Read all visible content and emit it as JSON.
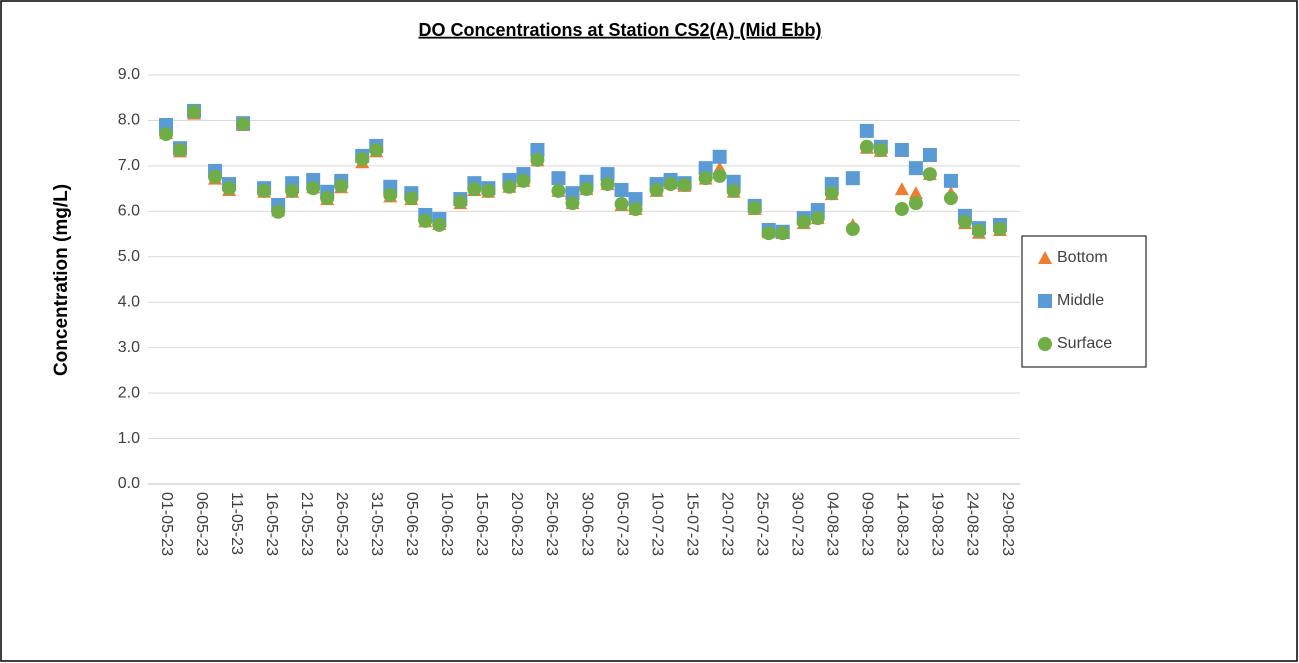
{
  "chart_data": {
    "type": "scatter",
    "title": "DO Concentrations at Station CS2(A) (Mid Ebb)",
    "y_label": "Concentration (mg/L)",
    "x": [
      "01-05-23",
      "03-05-23",
      "05-05-23",
      "08-05-23",
      "10-05-23",
      "12-05-23",
      "15-05-23",
      "17-05-23",
      "19-05-23",
      "22-05-23",
      "24-05-23",
      "26-05-23",
      "29-05-23",
      "31-05-23",
      "02-06-23",
      "05-06-23",
      "07-06-23",
      "09-06-23",
      "12-06-23",
      "14-06-23",
      "16-06-23",
      "19-06-23",
      "21-06-23",
      "23-06-23",
      "26-06-23",
      "28-06-23",
      "30-06-23",
      "03-07-23",
      "05-07-23",
      "07-07-23",
      "10-07-23",
      "12-07-23",
      "14-07-23",
      "17-07-23",
      "19-07-23",
      "21-07-23",
      "24-07-23",
      "26-07-23",
      "28-07-23",
      "31-07-23",
      "02-08-23",
      "04-08-23",
      "07-08-23",
      "09-08-23",
      "11-08-23",
      "14-08-23",
      "16-08-23",
      "18-08-23",
      "21-08-23",
      "23-08-23",
      "25-08-23",
      "28-08-23"
    ],
    "series": [
      {
        "name": "Bottom",
        "color": "#ed7d31",
        "marker": "triangle",
        "values": [
          7.72,
          7.32,
          8.15,
          6.72,
          6.47,
          7.9,
          6.43,
          6.02,
          6.43,
          6.53,
          6.27,
          6.53,
          7.08,
          7.32,
          6.33,
          6.27,
          5.78,
          5.72,
          6.18,
          6.47,
          6.43,
          6.54,
          6.67,
          7.12,
          6.45,
          6.18,
          6.49,
          6.6,
          6.14,
          6.05,
          6.45,
          6.62,
          6.56,
          6.72,
          6.95,
          6.43,
          6.05,
          5.54,
          5.52,
          5.74,
          5.85,
          6.38,
          5.7,
          7.4,
          7.33,
          6.49,
          6.4,
          6.82,
          6.4,
          5.74,
          5.53,
          5.59
        ]
      },
      {
        "name": "Middle",
        "color": "#5b9bd5",
        "marker": "square",
        "values": [
          7.9,
          7.39,
          8.21,
          6.89,
          6.6,
          7.94,
          6.51,
          6.14,
          6.62,
          6.69,
          6.43,
          6.67,
          7.22,
          7.44,
          6.54,
          6.4,
          5.92,
          5.83,
          6.27,
          6.62,
          6.51,
          6.69,
          6.82,
          7.35,
          6.73,
          6.4,
          6.65,
          6.82,
          6.47,
          6.27,
          6.6,
          6.69,
          6.62,
          6.95,
          7.2,
          6.65,
          6.12,
          5.59,
          5.55,
          5.85,
          6.03,
          6.6,
          6.73,
          7.77,
          7.42,
          7.35,
          6.95,
          7.24,
          6.67,
          5.9,
          5.63,
          5.7
        ]
      },
      {
        "name": "Surface",
        "color": "#70ad47",
        "marker": "circle",
        "values": [
          7.7,
          7.35,
          8.19,
          6.76,
          6.51,
          7.92,
          6.45,
          5.99,
          6.45,
          6.51,
          6.29,
          6.56,
          7.15,
          7.35,
          6.36,
          6.29,
          5.79,
          5.7,
          6.21,
          6.49,
          6.45,
          6.54,
          6.67,
          7.13,
          6.45,
          6.18,
          6.49,
          6.6,
          6.16,
          6.05,
          6.47,
          6.6,
          6.58,
          6.73,
          6.78,
          6.45,
          6.07,
          5.52,
          5.52,
          5.77,
          5.85,
          6.4,
          5.61,
          7.42,
          7.35,
          6.05,
          6.18,
          6.82,
          6.29,
          5.77,
          5.57,
          5.61
        ]
      }
    ],
    "xlim": [
      "01-05-23",
      "30-08-23"
    ],
    "xticks": [
      "01-05-23",
      "06-05-23",
      "11-05-23",
      "16-05-23",
      "21-05-23",
      "26-05-23",
      "31-05-23",
      "05-06-23",
      "10-06-23",
      "15-06-23",
      "20-06-23",
      "25-06-23",
      "30-06-23",
      "05-07-23",
      "10-07-23",
      "15-07-23",
      "20-07-23",
      "25-07-23",
      "30-07-23",
      "04-08-23",
      "09-08-23",
      "14-08-23",
      "19-08-23",
      "24-08-23",
      "29-08-23"
    ],
    "ylim": [
      0,
      9
    ],
    "yticks": [
      {
        "value": 0,
        "label": "0.0"
      },
      {
        "value": 1,
        "label": "1.0"
      },
      {
        "value": 2,
        "label": "2.0"
      },
      {
        "value": 3,
        "label": "3.0"
      },
      {
        "value": 4,
        "label": "4.0"
      },
      {
        "value": 5,
        "label": "5.0"
      },
      {
        "value": 6,
        "label": "6.0"
      },
      {
        "value": 7,
        "label": "7.0"
      },
      {
        "value": 8,
        "label": "8.0"
      },
      {
        "value": 9,
        "label": "9.0"
      }
    ],
    "grid": true,
    "legend": "right"
  }
}
